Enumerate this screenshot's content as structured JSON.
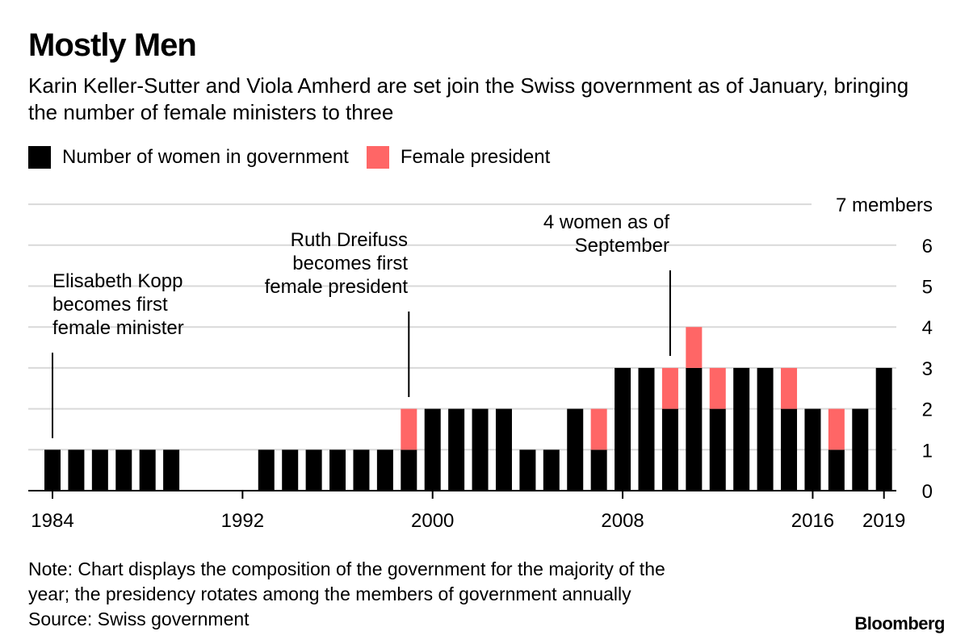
{
  "header": {
    "title": "Mostly Men",
    "subtitle": "Karin Keller-Sutter and Viola Amherd are set join the Swiss government as of January, bringing the number of female ministers to three"
  },
  "legend": {
    "items": [
      {
        "label": "Number of women in government",
        "color": "#000000"
      },
      {
        "label": "Female president",
        "color": "#ff6666"
      }
    ]
  },
  "chart_data": {
    "type": "bar",
    "stacked": true,
    "title": "Mostly Men",
    "x": [
      1984,
      1985,
      1986,
      1987,
      1988,
      1989,
      1990,
      1991,
      1992,
      1993,
      1994,
      1995,
      1996,
      1997,
      1998,
      1999,
      2000,
      2001,
      2002,
      2003,
      2004,
      2005,
      2006,
      2007,
      2008,
      2009,
      2010,
      2011,
      2012,
      2013,
      2014,
      2015,
      2016,
      2017,
      2018,
      2019
    ],
    "series": [
      {
        "name": "Number of women in government",
        "color": "#000000",
        "values": [
          1,
          1,
          1,
          1,
          1,
          1,
          0,
          0,
          0,
          1,
          1,
          1,
          1,
          1,
          1,
          1,
          2,
          2,
          2,
          2,
          1,
          1,
          2,
          1,
          3,
          3,
          2,
          3,
          2,
          3,
          3,
          2,
          2,
          1,
          2,
          3
        ]
      },
      {
        "name": "Female president",
        "color": "#ff6666",
        "values": [
          0,
          0,
          0,
          0,
          0,
          0,
          0,
          0,
          0,
          0,
          0,
          0,
          0,
          0,
          0,
          1,
          0,
          0,
          0,
          0,
          0,
          0,
          0,
          1,
          0,
          0,
          1,
          1,
          1,
          0,
          0,
          1,
          0,
          1,
          0,
          0
        ]
      }
    ],
    "x_tick_labels": [
      "1984",
      "1992",
      "2000",
      "2008",
      "2016",
      "2019"
    ],
    "x_tick_values": [
      1984,
      1992,
      2000,
      2008,
      2016,
      2019
    ],
    "y_tick_labels": [
      "0",
      "1",
      "2",
      "3",
      "4",
      "5",
      "6",
      "7 members"
    ],
    "ylim": [
      0,
      7
    ],
    "grid": true,
    "annotations": [
      {
        "lines": [
          "Elisabeth Kopp",
          "becomes first",
          "female minister"
        ],
        "year": 1984,
        "align": "left"
      },
      {
        "lines": [
          "Ruth Dreifuss",
          "becomes first",
          "female president"
        ],
        "year": 1999,
        "align": "right"
      },
      {
        "lines": [
          "4 women as of",
          "September"
        ],
        "year": 2010,
        "align": "right"
      }
    ]
  },
  "footer": {
    "note_lines": [
      "Note: Chart displays the composition of the government for the majority of the",
      "year; the presidency rotates among the members of government annually"
    ],
    "source": "Source: Swiss government",
    "brand": "Bloomberg"
  }
}
